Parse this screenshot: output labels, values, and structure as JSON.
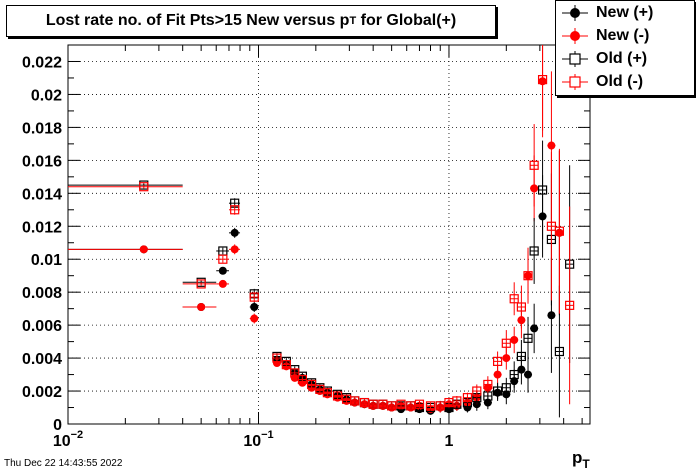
{
  "chart_data": {
    "type": "scatter",
    "title": "Lost rate no. of Fit Pts>15 New versus p_T for Global(+)",
    "title_main": "Lost rate no. of Fit Pts>15 New versus p",
    "title_sub": "T",
    "title_tail": " for Global(+)",
    "xlabel_main": "p",
    "xlabel_sub": "T",
    "x_scale": "log",
    "xlim": [
      0.01,
      5.5
    ],
    "ylim": [
      0,
      0.023
    ],
    "grid": true,
    "legend_placement": "top-right",
    "x_tick_labels": [
      {
        "value": 0.01,
        "base": "10",
        "exp": "−2"
      },
      {
        "value": 0.1,
        "base": "10",
        "exp": "−1"
      },
      {
        "value": 1,
        "base": "1",
        "exp": ""
      }
    ],
    "y_ticks": [
      0,
      0.002,
      0.004,
      0.006,
      0.008,
      0.01,
      0.012,
      0.014,
      0.016,
      0.018,
      0.02,
      0.022
    ],
    "y_tick_labels": [
      "0",
      "0.002",
      "0.004",
      "0.006",
      "0.008",
      "0.01",
      "0.012",
      "0.014",
      "0.016",
      "0.018",
      "0.02",
      "0.022"
    ],
    "series": [
      {
        "name": "New (+)",
        "color": "#000000",
        "marker": "filled-circle",
        "points": [
          {
            "x": 0.025,
            "xlo": 0.01,
            "xhi": 0.04,
            "y": 0.0106,
            "e": 0.0001
          },
          {
            "x": 0.05,
            "xlo": 0.04,
            "xhi": 0.06,
            "y": 0.0071,
            "e": 0.0001
          },
          {
            "x": 0.065,
            "xlo": 0.06,
            "xhi": 0.07,
            "y": 0.0093,
            "e": 0.0002
          },
          {
            "x": 0.075,
            "xlo": 0.07,
            "xhi": 0.08,
            "y": 0.0116,
            "e": 0.0003
          },
          {
            "x": 0.095,
            "xlo": 0.09,
            "xhi": 0.1,
            "y": 0.0071,
            "e": 0.0003
          },
          {
            "x": 0.125,
            "y": 0.0039,
            "e": 0.0002
          },
          {
            "x": 0.14,
            "y": 0.0036,
            "e": 0.0002
          },
          {
            "x": 0.155,
            "y": 0.0031,
            "e": 0.0002
          },
          {
            "x": 0.17,
            "y": 0.0028,
            "e": 0.0002
          },
          {
            "x": 0.19,
            "y": 0.0024,
            "e": 0.0002
          },
          {
            "x": 0.21,
            "y": 0.0021,
            "e": 0.0002
          },
          {
            "x": 0.23,
            "y": 0.0019,
            "e": 0.0002
          },
          {
            "x": 0.26,
            "y": 0.0017,
            "e": 0.0002
          },
          {
            "x": 0.29,
            "y": 0.0015,
            "e": 0.0002
          },
          {
            "x": 0.32,
            "y": 0.0013,
            "e": 0.0002
          },
          {
            "x": 0.36,
            "y": 0.0012,
            "e": 0.0002
          },
          {
            "x": 0.4,
            "y": 0.0011,
            "e": 0.0002
          },
          {
            "x": 0.45,
            "y": 0.0011,
            "e": 0.0002
          },
          {
            "x": 0.5,
            "y": 0.001,
            "e": 0.0002
          },
          {
            "x": 0.56,
            "y": 0.0009,
            "e": 0.0002
          },
          {
            "x": 0.63,
            "y": 0.001,
            "e": 0.0002
          },
          {
            "x": 0.7,
            "y": 0.0009,
            "e": 0.0002
          },
          {
            "x": 0.8,
            "y": 0.0008,
            "e": 0.0002
          },
          {
            "x": 0.9,
            "y": 0.001,
            "e": 0.0003
          },
          {
            "x": 1.0,
            "y": 0.0009,
            "e": 0.0003
          },
          {
            "x": 1.1,
            "y": 0.0011,
            "e": 0.0003
          },
          {
            "x": 1.25,
            "y": 0.001,
            "e": 0.0003
          },
          {
            "x": 1.4,
            "y": 0.0012,
            "e": 0.0004
          },
          {
            "x": 1.6,
            "y": 0.0013,
            "e": 0.0004
          },
          {
            "x": 1.8,
            "y": 0.0019,
            "e": 0.0005
          },
          {
            "x": 2.0,
            "y": 0.0018,
            "e": 0.0006
          },
          {
            "x": 2.2,
            "y": 0.0026,
            "e": 0.0007
          },
          {
            "x": 2.4,
            "y": 0.0033,
            "e": 0.0009
          },
          {
            "x": 2.6,
            "y": 0.003,
            "e": 0.0011
          },
          {
            "x": 2.8,
            "y": 0.0058,
            "e": 0.0015
          },
          {
            "x": 3.1,
            "y": 0.0126,
            "e": 0.0025
          },
          {
            "x": 3.45,
            "y": 0.0066,
            "e": 0.0035
          },
          {
            "x": 3.8,
            "y": 0.0116,
            "e": 0.005
          }
        ]
      },
      {
        "name": "New (-)",
        "color": "#ff0000",
        "marker": "filled-circle",
        "points": [
          {
            "x": 0.025,
            "xlo": 0.01,
            "xhi": 0.04,
            "y": 0.0106,
            "e": 0.0001
          },
          {
            "x": 0.05,
            "xlo": 0.04,
            "xhi": 0.06,
            "y": 0.0071,
            "e": 0.0001
          },
          {
            "x": 0.065,
            "xlo": 0.06,
            "xhi": 0.07,
            "y": 0.0085,
            "e": 0.0002
          },
          {
            "x": 0.075,
            "xlo": 0.07,
            "xhi": 0.08,
            "y": 0.0106,
            "e": 0.0003
          },
          {
            "x": 0.095,
            "xlo": 0.09,
            "xhi": 0.1,
            "y": 0.0064,
            "e": 0.0003
          },
          {
            "x": 0.125,
            "y": 0.0037,
            "e": 0.0002
          },
          {
            "x": 0.14,
            "y": 0.0035,
            "e": 0.0002
          },
          {
            "x": 0.155,
            "y": 0.0028,
            "e": 0.0002
          },
          {
            "x": 0.17,
            "y": 0.0025,
            "e": 0.0002
          },
          {
            "x": 0.19,
            "y": 0.0022,
            "e": 0.0002
          },
          {
            "x": 0.21,
            "y": 0.002,
            "e": 0.0002
          },
          {
            "x": 0.23,
            "y": 0.0018,
            "e": 0.0002
          },
          {
            "x": 0.26,
            "y": 0.0016,
            "e": 0.0002
          },
          {
            "x": 0.29,
            "y": 0.0014,
            "e": 0.0002
          },
          {
            "x": 0.32,
            "y": 0.0013,
            "e": 0.0002
          },
          {
            "x": 0.36,
            "y": 0.0012,
            "e": 0.0002
          },
          {
            "x": 0.4,
            "y": 0.0011,
            "e": 0.0002
          },
          {
            "x": 0.45,
            "y": 0.0011,
            "e": 0.0002
          },
          {
            "x": 0.5,
            "y": 0.001,
            "e": 0.0002
          },
          {
            "x": 0.56,
            "y": 0.0011,
            "e": 0.0002
          },
          {
            "x": 0.63,
            "y": 0.001,
            "e": 0.0002
          },
          {
            "x": 0.7,
            "y": 0.0011,
            "e": 0.0002
          },
          {
            "x": 0.8,
            "y": 0.0009,
            "e": 0.0002
          },
          {
            "x": 0.9,
            "y": 0.001,
            "e": 0.0003
          },
          {
            "x": 1.0,
            "y": 0.0012,
            "e": 0.0003
          },
          {
            "x": 1.1,
            "y": 0.0011,
            "e": 0.0003
          },
          {
            "x": 1.25,
            "y": 0.0013,
            "e": 0.0003
          },
          {
            "x": 1.4,
            "y": 0.0016,
            "e": 0.0004
          },
          {
            "x": 1.6,
            "y": 0.0022,
            "e": 0.0005
          },
          {
            "x": 1.8,
            "y": 0.003,
            "e": 0.0006
          },
          {
            "x": 2.0,
            "y": 0.004,
            "e": 0.0007
          },
          {
            "x": 2.2,
            "y": 0.0051,
            "e": 0.0008
          },
          {
            "x": 2.4,
            "y": 0.0063,
            "e": 0.0011
          },
          {
            "x": 2.6,
            "y": 0.009,
            "e": 0.0015
          },
          {
            "x": 2.8,
            "y": 0.0143,
            "e": 0.002
          },
          {
            "x": 3.1,
            "y": 0.0208,
            "e": 0.003
          },
          {
            "x": 3.45,
            "y": 0.0169,
            "e": 0.0045
          },
          {
            "x": 3.8,
            "y": 0.0116,
            "e": 0.005
          }
        ]
      },
      {
        "name": "Old (+)",
        "color": "#000000",
        "marker": "open-square",
        "points": [
          {
            "x": 0.025,
            "xlo": 0.01,
            "xhi": 0.04,
            "y": 0.0145,
            "e": 0.0001
          },
          {
            "x": 0.05,
            "xlo": 0.04,
            "xhi": 0.06,
            "y": 0.0086,
            "e": 0.0001
          },
          {
            "x": 0.065,
            "xlo": 0.06,
            "xhi": 0.07,
            "y": 0.0105,
            "e": 0.0002
          },
          {
            "x": 0.075,
            "xlo": 0.07,
            "xhi": 0.08,
            "y": 0.0134,
            "e": 0.0003
          },
          {
            "x": 0.095,
            "xlo": 0.09,
            "xhi": 0.1,
            "y": 0.0079,
            "e": 0.0003
          },
          {
            "x": 0.125,
            "y": 0.0041,
            "e": 0.0002
          },
          {
            "x": 0.14,
            "y": 0.0038,
            "e": 0.0002
          },
          {
            "x": 0.155,
            "y": 0.0033,
            "e": 0.0002
          },
          {
            "x": 0.17,
            "y": 0.0029,
            "e": 0.0002
          },
          {
            "x": 0.19,
            "y": 0.0025,
            "e": 0.0002
          },
          {
            "x": 0.21,
            "y": 0.0022,
            "e": 0.0002
          },
          {
            "x": 0.23,
            "y": 0.002,
            "e": 0.0002
          },
          {
            "x": 0.26,
            "y": 0.0018,
            "e": 0.0002
          },
          {
            "x": 0.29,
            "y": 0.0016,
            "e": 0.0002
          },
          {
            "x": 0.32,
            "y": 0.0014,
            "e": 0.0002
          },
          {
            "x": 0.36,
            "y": 0.0013,
            "e": 0.0002
          },
          {
            "x": 0.4,
            "y": 0.0012,
            "e": 0.0002
          },
          {
            "x": 0.45,
            "y": 0.0012,
            "e": 0.0002
          },
          {
            "x": 0.5,
            "y": 0.0011,
            "e": 0.0002
          },
          {
            "x": 0.56,
            "y": 0.0011,
            "e": 0.0002
          },
          {
            "x": 0.63,
            "y": 0.0011,
            "e": 0.0002
          },
          {
            "x": 0.7,
            "y": 0.001,
            "e": 0.0002
          },
          {
            "x": 0.8,
            "y": 0.001,
            "e": 0.0002
          },
          {
            "x": 0.9,
            "y": 0.0011,
            "e": 0.0003
          },
          {
            "x": 1.0,
            "y": 0.001,
            "e": 0.0003
          },
          {
            "x": 1.1,
            "y": 0.0012,
            "e": 0.0003
          },
          {
            "x": 1.25,
            "y": 0.0013,
            "e": 0.0003
          },
          {
            "x": 1.4,
            "y": 0.0016,
            "e": 0.0004
          },
          {
            "x": 1.6,
            "y": 0.0017,
            "e": 0.0004
          },
          {
            "x": 1.8,
            "y": 0.002,
            "e": 0.0005
          },
          {
            "x": 2.0,
            "y": 0.0022,
            "e": 0.0006
          },
          {
            "x": 2.2,
            "y": 0.003,
            "e": 0.0008
          },
          {
            "x": 2.4,
            "y": 0.0041,
            "e": 0.001
          },
          {
            "x": 2.6,
            "y": 0.0052,
            "e": 0.0013
          },
          {
            "x": 2.8,
            "y": 0.0105,
            "e": 0.002
          },
          {
            "x": 3.1,
            "y": 0.0142,
            "e": 0.003
          },
          {
            "x": 3.45,
            "y": 0.0112,
            "e": 0.004
          },
          {
            "x": 3.8,
            "y": 0.0044,
            "e": 0.004
          },
          {
            "x": 4.3,
            "y": 0.0097,
            "e": 0.006
          }
        ]
      },
      {
        "name": "Old (-)",
        "color": "#ff0000",
        "marker": "open-square",
        "points": [
          {
            "x": 0.025,
            "xlo": 0.01,
            "xhi": 0.04,
            "y": 0.0144,
            "e": 0.0001
          },
          {
            "x": 0.05,
            "xlo": 0.04,
            "xhi": 0.06,
            "y": 0.0085,
            "e": 0.0001
          },
          {
            "x": 0.065,
            "xlo": 0.06,
            "xhi": 0.07,
            "y": 0.01,
            "e": 0.0002
          },
          {
            "x": 0.075,
            "xlo": 0.07,
            "xhi": 0.08,
            "y": 0.013,
            "e": 0.0003
          },
          {
            "x": 0.095,
            "xlo": 0.09,
            "xhi": 0.1,
            "y": 0.0077,
            "e": 0.0003
          },
          {
            "x": 0.125,
            "y": 0.004,
            "e": 0.0002
          },
          {
            "x": 0.14,
            "y": 0.0036,
            "e": 0.0002
          },
          {
            "x": 0.155,
            "y": 0.0031,
            "e": 0.0002
          },
          {
            "x": 0.17,
            "y": 0.0027,
            "e": 0.0002
          },
          {
            "x": 0.19,
            "y": 0.0024,
            "e": 0.0002
          },
          {
            "x": 0.21,
            "y": 0.0021,
            "e": 0.0002
          },
          {
            "x": 0.23,
            "y": 0.0019,
            "e": 0.0002
          },
          {
            "x": 0.26,
            "y": 0.0017,
            "e": 0.0002
          },
          {
            "x": 0.29,
            "y": 0.0015,
            "e": 0.0002
          },
          {
            "x": 0.32,
            "y": 0.0014,
            "e": 0.0002
          },
          {
            "x": 0.36,
            "y": 0.0013,
            "e": 0.0002
          },
          {
            "x": 0.4,
            "y": 0.0012,
            "e": 0.0002
          },
          {
            "x": 0.45,
            "y": 0.0012,
            "e": 0.0002
          },
          {
            "x": 0.5,
            "y": 0.0011,
            "e": 0.0002
          },
          {
            "x": 0.56,
            "y": 0.0012,
            "e": 0.0002
          },
          {
            "x": 0.63,
            "y": 0.0011,
            "e": 0.0002
          },
          {
            "x": 0.7,
            "y": 0.0012,
            "e": 0.0002
          },
          {
            "x": 0.8,
            "y": 0.0011,
            "e": 0.0002
          },
          {
            "x": 0.9,
            "y": 0.0011,
            "e": 0.0003
          },
          {
            "x": 1.0,
            "y": 0.0013,
            "e": 0.0003
          },
          {
            "x": 1.1,
            "y": 0.0014,
            "e": 0.0003
          },
          {
            "x": 1.25,
            "y": 0.0016,
            "e": 0.0003
          },
          {
            "x": 1.4,
            "y": 0.002,
            "e": 0.0004
          },
          {
            "x": 1.6,
            "y": 0.0024,
            "e": 0.0005
          },
          {
            "x": 1.8,
            "y": 0.0038,
            "e": 0.0006
          },
          {
            "x": 2.0,
            "y": 0.0049,
            "e": 0.0008
          },
          {
            "x": 2.2,
            "y": 0.0076,
            "e": 0.001
          },
          {
            "x": 2.4,
            "y": 0.0071,
            "e": 0.0013
          },
          {
            "x": 2.6,
            "y": 0.009,
            "e": 0.0017
          },
          {
            "x": 2.8,
            "y": 0.0157,
            "e": 0.0025
          },
          {
            "x": 3.1,
            "y": 0.0209,
            "e": 0.0035
          },
          {
            "x": 3.45,
            "y": 0.012,
            "e": 0.0045
          },
          {
            "x": 3.8,
            "y": 0.0117,
            "e": 0.005
          },
          {
            "x": 4.3,
            "y": 0.0072,
            "e": 0.006
          }
        ]
      }
    ]
  },
  "footer": {
    "timestamp": "Thu Dec 22 14:43:55 2022"
  }
}
